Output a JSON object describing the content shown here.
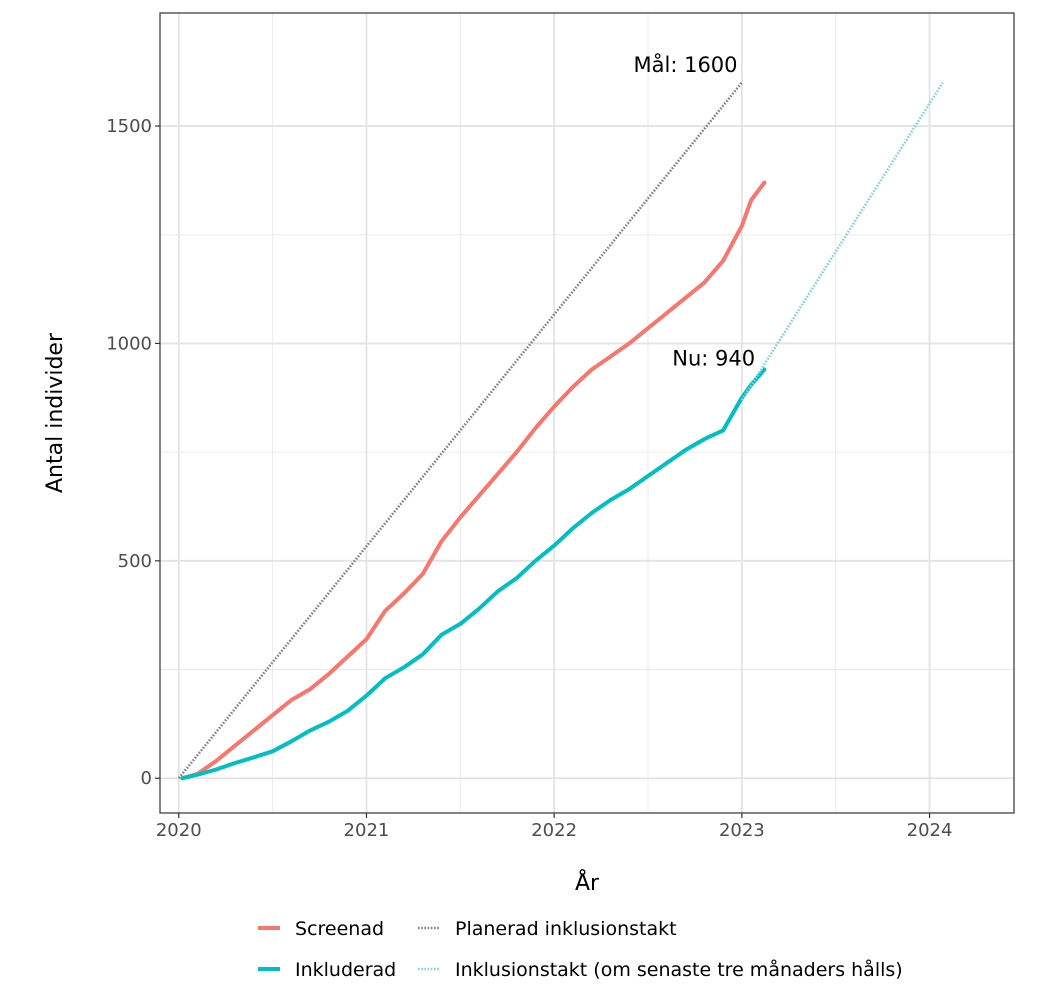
{
  "chart_data": {
    "type": "line",
    "title": "",
    "xlabel": "År",
    "ylabel": "Antal individer",
    "xlim": [
      2019.9,
      2024.45
    ],
    "ylim": [
      -80,
      1760
    ],
    "x_ticks": [
      2020,
      2021,
      2022,
      2023,
      2024
    ],
    "x_tick_labels": [
      "2020",
      "2021",
      "2022",
      "2023",
      "2024"
    ],
    "x_minor_ticks": [
      2020.5,
      2021.5,
      2022.5,
      2023.5
    ],
    "y_ticks": [
      0,
      500,
      1000,
      1500
    ],
    "y_tick_labels": [
      "0",
      "500",
      "1000",
      "1500"
    ],
    "y_minor_ticks": [
      250,
      750,
      1250
    ],
    "grid": true,
    "legend_position": "bottom",
    "series": [
      {
        "name": "Screenad",
        "color": "#F8766D",
        "style": "solid",
        "x": [
          2020.02,
          2020.1,
          2020.2,
          2020.3,
          2020.4,
          2020.5,
          2020.6,
          2020.7,
          2020.8,
          2020.9,
          2021.0,
          2021.1,
          2021.2,
          2021.3,
          2021.4,
          2021.5,
          2021.6,
          2021.7,
          2021.8,
          2021.9,
          2022.0,
          2022.1,
          2022.2,
          2022.3,
          2022.4,
          2022.5,
          2022.6,
          2022.7,
          2022.8,
          2022.9,
          2023.0,
          2023.05,
          2023.12
        ],
        "y": [
          0,
          10,
          40,
          75,
          110,
          145,
          180,
          205,
          240,
          280,
          320,
          385,
          425,
          470,
          545,
          600,
          650,
          700,
          750,
          805,
          855,
          900,
          940,
          970,
          1000,
          1035,
          1070,
          1105,
          1140,
          1190,
          1270,
          1330,
          1370
        ]
      },
      {
        "name": "Inkluderad",
        "color": "#00BFC4",
        "style": "solid",
        "x": [
          2020.02,
          2020.1,
          2020.2,
          2020.3,
          2020.4,
          2020.5,
          2020.6,
          2020.7,
          2020.8,
          2020.9,
          2021.0,
          2021.1,
          2021.2,
          2021.3,
          2021.4,
          2021.5,
          2021.6,
          2021.7,
          2021.8,
          2021.9,
          2022.0,
          2022.1,
          2022.2,
          2022.3,
          2022.4,
          2022.5,
          2022.6,
          2022.7,
          2022.8,
          2022.9,
          2023.0,
          2023.05,
          2023.12
        ],
        "y": [
          0,
          8,
          20,
          35,
          48,
          62,
          85,
          110,
          130,
          155,
          190,
          230,
          255,
          285,
          330,
          355,
          390,
          430,
          460,
          500,
          535,
          575,
          610,
          640,
          665,
          695,
          725,
          755,
          780,
          800,
          875,
          905,
          940
        ]
      },
      {
        "name": "Planerad inklusionstakt",
        "color": "#808080",
        "style": "dotted",
        "x": [
          2020.0,
          2023.0
        ],
        "y": [
          0,
          1600
        ]
      },
      {
        "name": "Inklusionstakt (om senaste tre månaders hålls)",
        "color": "#7FD3DC",
        "style": "dotted",
        "x": [
          2023.0,
          2024.07
        ],
        "y": [
          870,
          1600
        ]
      }
    ],
    "annotations": [
      {
        "text": "Mål: 1600",
        "x": 2022.7,
        "y": 1640
      },
      {
        "text": "Nu: 940",
        "x": 2022.85,
        "y": 965
      }
    ]
  }
}
